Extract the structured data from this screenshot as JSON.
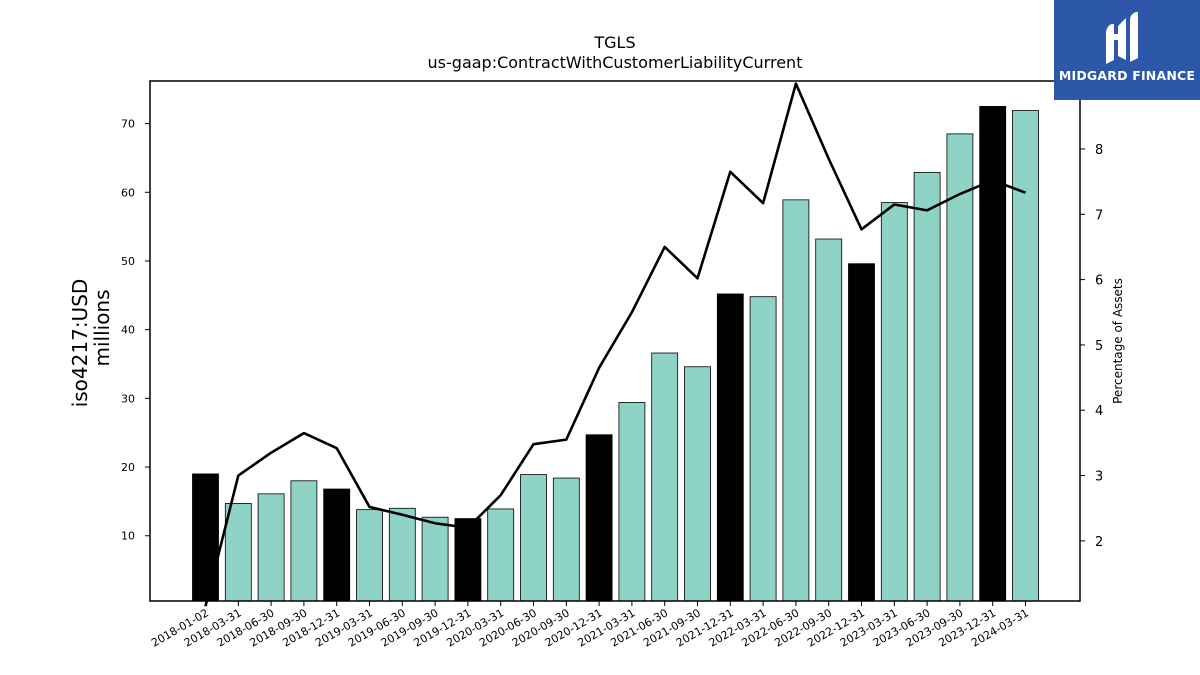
{
  "chart_data": {
    "type": "bar",
    "title": "TGLS",
    "subtitle": "us-gaap:ContractWithCustomerLiabilityCurrent",
    "ylabel": "iso4217:USD",
    "ylabel_unit": "millions",
    "y2label": "Percentage of Assets",
    "ylim": [
      0.5,
      76.2
    ],
    "y2lim": [
      1.08,
      9.04
    ],
    "yticks": [
      10,
      20,
      30,
      40,
      50,
      60,
      70
    ],
    "y2ticks": [
      2,
      3,
      4,
      5,
      6,
      7,
      8
    ],
    "grid": false,
    "categories": [
      "2018-01-02",
      "2018-03-31",
      "2018-06-30",
      "2018-09-30",
      "2018-12-31",
      "2019-03-31",
      "2019-06-30",
      "2019-09-30",
      "2019-12-31",
      "2020-03-31",
      "2020-06-30",
      "2020-09-30",
      "2020-12-31",
      "2021-03-31",
      "2021-06-30",
      "2021-09-30",
      "2021-12-31",
      "2022-03-31",
      "2022-06-30",
      "2022-09-30",
      "2022-12-31",
      "2023-03-31",
      "2023-06-30",
      "2023-09-30",
      "2023-12-31",
      "2024-03-31"
    ],
    "series": [
      {
        "name": "",
        "kind": "bar",
        "values": [
          19.0,
          14.7,
          16.1,
          18.0,
          16.8,
          13.8,
          14.0,
          12.7,
          12.5,
          13.9,
          18.9,
          18.4,
          24.7,
          29.4,
          36.6,
          34.6,
          45.2,
          44.8,
          58.9,
          53.2,
          49.6,
          58.5,
          62.9,
          68.5,
          72.5,
          71.9
        ],
        "color_regular": "#8fd3c7",
        "color_year_end": "#000000",
        "year_end_indices": [
          0,
          4,
          8,
          12,
          16,
          20,
          24
        ]
      },
      {
        "name": "",
        "kind": "line",
        "axis": "right",
        "values": [
          1.0,
          3.0,
          3.35,
          3.65,
          3.42,
          2.52,
          2.4,
          2.27,
          2.2,
          2.7,
          3.48,
          3.55,
          4.65,
          5.5,
          6.5,
          6.02,
          7.65,
          7.17,
          9.0,
          7.85,
          6.77,
          7.15,
          7.06,
          7.31,
          7.52,
          7.33
        ],
        "color": "#000000"
      }
    ]
  },
  "logo": {
    "text": "MIDGARD FINANCE",
    "color": "#2d57a8"
  }
}
